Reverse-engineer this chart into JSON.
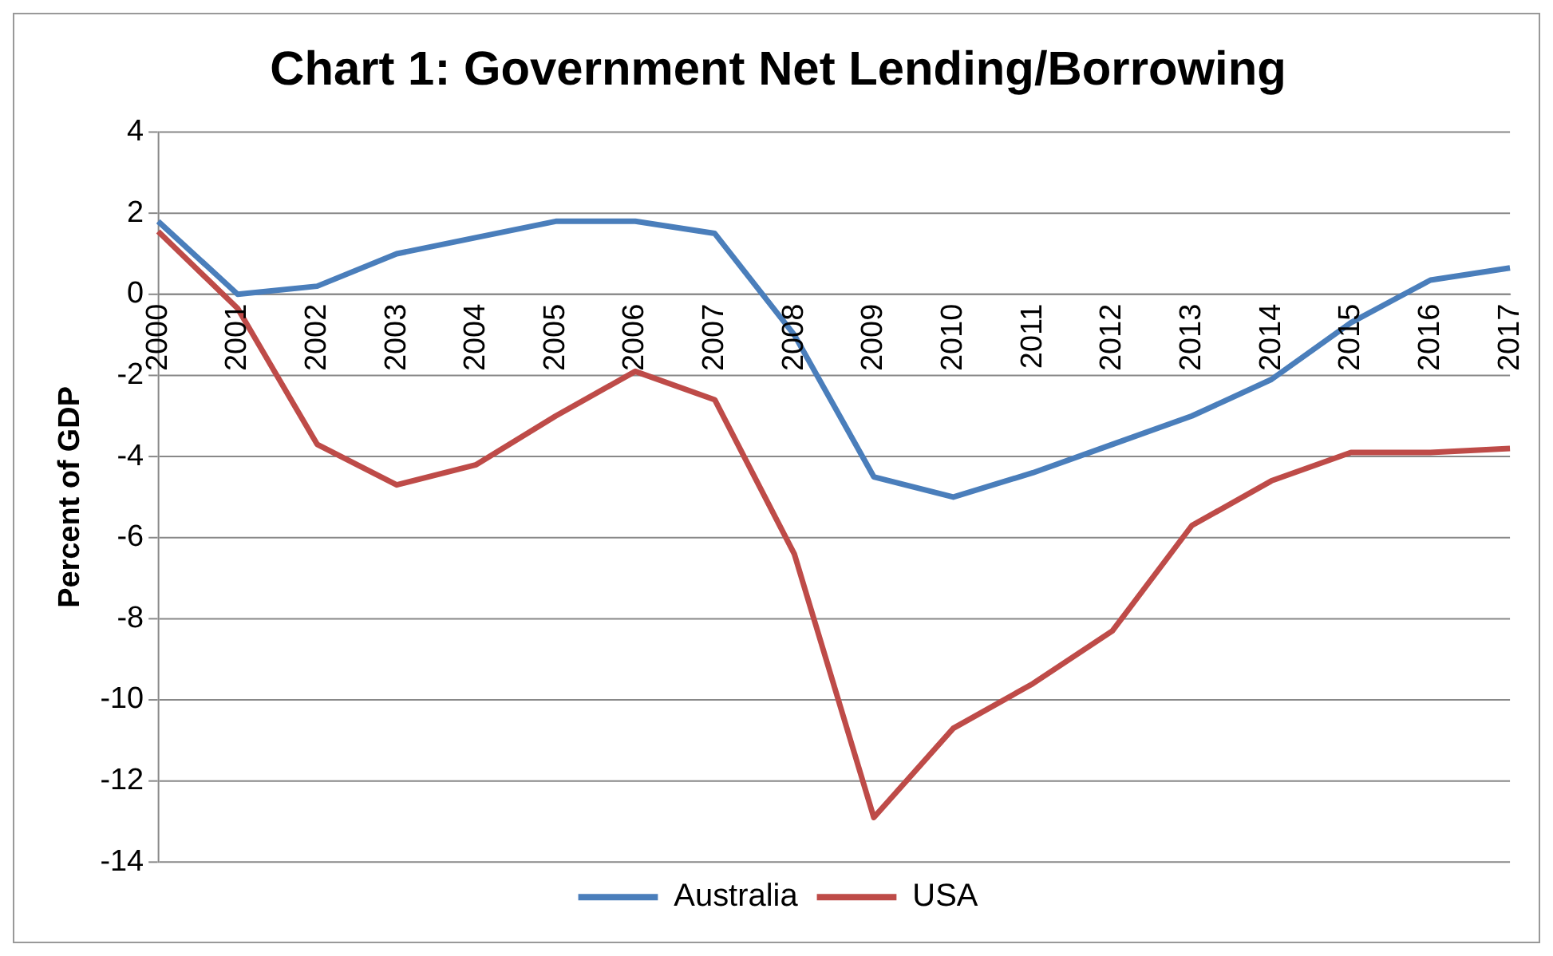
{
  "chart_data": {
    "type": "line",
    "title": "Chart 1: Government Net Lending/Borrowing",
    "ylabel": "Percent of GDP",
    "categories": [
      "2000",
      "2001",
      "2002",
      "2003",
      "2004",
      "2005",
      "2006",
      "2007",
      "2008",
      "2009",
      "2010",
      "2011",
      "2012",
      "2013",
      "2014",
      "2015",
      "2016",
      "2017"
    ],
    "series": [
      {
        "name": "Australia",
        "color": "#4a7ebb",
        "values": [
          1.8,
          0,
          0.2,
          1.0,
          1.4,
          1.8,
          1.8,
          1.5,
          -1.0,
          -4.5,
          -5.0,
          -4.4,
          -3.7,
          -3.0,
          -2.1,
          -0.7,
          0.35,
          0.65
        ]
      },
      {
        "name": "USA",
        "color": "#be4b48",
        "values": [
          1.55,
          -0.35,
          -3.7,
          -4.7,
          -4.2,
          -3.0,
          -1.9,
          -2.6,
          -6.4,
          -12.9,
          -10.7,
          -9.6,
          -8.3,
          -5.7,
          -4.6,
          -3.9,
          -3.9,
          -3.8
        ]
      }
    ],
    "ylim": [
      -14,
      4
    ],
    "yticks": [
      -14,
      -12,
      -10,
      -8,
      -6,
      -4,
      -2,
      0,
      2,
      4
    ],
    "grid": "y",
    "legend": "bottom",
    "marker": "none",
    "line_style": "solid"
  }
}
